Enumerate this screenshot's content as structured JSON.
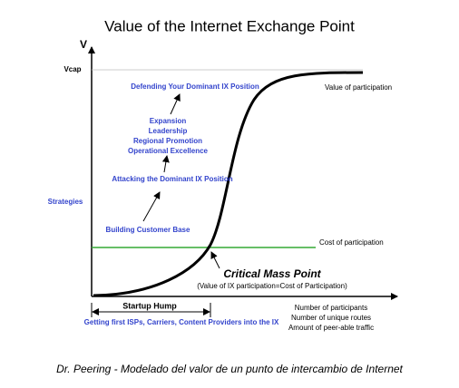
{
  "title": "Value of the Internet Exchange Point",
  "axes": {
    "y_label": "V",
    "y_max_label": "Vcap",
    "x_labels": [
      "Number of participants",
      "Number of unique routes",
      "Amount of peer-able traffic"
    ]
  },
  "curves": {
    "value": "Value of participation",
    "cost": "Cost of participation"
  },
  "strategies": {
    "label": "Strategies",
    "steps": [
      "Building Customer Base",
      "Attacking the Dominant IX Position",
      "Expansion",
      "Leadership",
      "Regional Promotion",
      "Operational Excellence",
      "Defending Your Dominant IX Position"
    ]
  },
  "critical_mass": {
    "title": "Critical Mass Point",
    "subtitle": "(Value of IX participation=Cost of Participation)"
  },
  "startup_hump": {
    "label": "Startup Hump",
    "description": "Getting first ISPs, Carriers, Content Providers into the IX"
  },
  "caption": "Dr. Peering - Modelado del valor de un punto de intercambio de Internet"
}
